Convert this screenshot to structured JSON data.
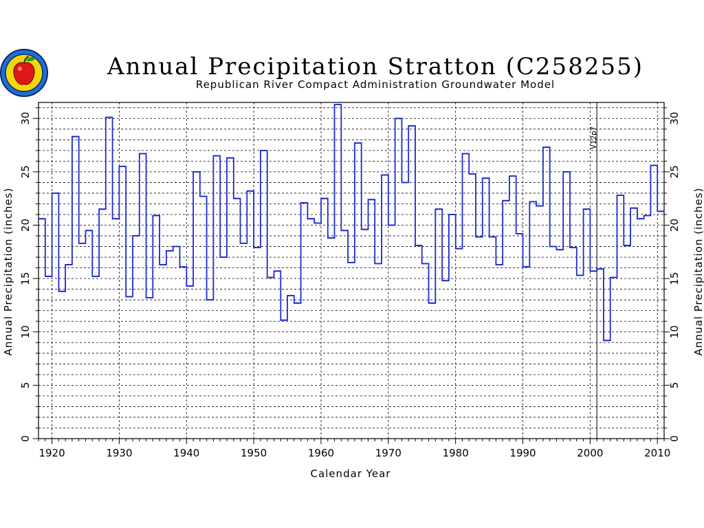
{
  "chart_data": {
    "type": "line",
    "style": "step",
    "title": "Annual Precipitation Stratton (C258255)",
    "subtitle": "Republican River Compact Administration Groundwater Model",
    "xlabel": "Calendar Year",
    "ylabel": "Annual Precipitation (inches)",
    "ylabel_right": "Annual Precipitation (inches)",
    "xlim": [
      1918,
      2011
    ],
    "ylim": [
      0,
      31.5
    ],
    "xticks": [
      1920,
      1930,
      1940,
      1950,
      1960,
      1970,
      1980,
      1990,
      2000,
      2010
    ],
    "yticks": [
      0,
      5,
      10,
      15,
      20,
      25,
      30
    ],
    "grid": true,
    "annotation": {
      "label": "V12p7",
      "x": 2001
    },
    "series_color": "#1a2bd0",
    "series": [
      {
        "x": [
          1918,
          1919,
          1920,
          1921,
          1922,
          1923,
          1924,
          1925,
          1926,
          1927,
          1928,
          1929,
          1930,
          1931,
          1932,
          1933,
          1934,
          1935,
          1936,
          1937,
          1938,
          1939,
          1940,
          1941,
          1942,
          1943,
          1944,
          1945,
          1946,
          1947,
          1948,
          1949,
          1950,
          1951,
          1952,
          1953,
          1954,
          1955,
          1956,
          1957,
          1958,
          1959,
          1960,
          1961,
          1962,
          1963,
          1964,
          1965,
          1966,
          1967,
          1968,
          1969,
          1970,
          1971,
          1972,
          1973,
          1974,
          1975,
          1976,
          1977,
          1978,
          1979,
          1980,
          1981,
          1982,
          1983,
          1984,
          1985,
          1986,
          1987,
          1988,
          1989,
          1990,
          1991,
          1992,
          1993,
          1994,
          1995,
          1996,
          1997,
          1998,
          1999,
          2000,
          2001,
          2002,
          2003,
          2004,
          2005,
          2006,
          2007,
          2008,
          2009,
          2010
        ],
        "values": [
          20.6,
          15.2,
          23.0,
          13.8,
          16.3,
          28.3,
          18.3,
          19.5,
          15.2,
          21.5,
          30.1,
          20.6,
          25.5,
          13.3,
          19.0,
          26.7,
          13.2,
          20.9,
          16.3,
          17.6,
          18.0,
          16.1,
          14.3,
          25.0,
          22.7,
          13.0,
          26.5,
          17.0,
          26.3,
          22.5,
          18.3,
          23.2,
          17.9,
          27.0,
          15.1,
          15.7,
          11.1,
          13.4,
          12.7,
          22.1,
          20.6,
          20.2,
          22.5,
          18.8,
          31.3,
          19.5,
          16.5,
          27.7,
          19.6,
          22.4,
          16.4,
          24.7,
          20.0,
          30.0,
          24.0,
          29.3,
          18.1,
          16.4,
          12.7,
          21.5,
          14.8,
          21.0,
          17.8,
          26.7,
          24.8,
          18.9,
          24.4,
          18.9,
          16.3,
          22.3,
          24.6,
          19.2,
          16.1,
          22.2,
          21.8,
          27.3,
          18.0,
          17.7,
          25.0,
          17.9,
          15.3,
          21.5,
          15.7,
          15.9,
          9.2,
          15.1,
          22.8,
          18.1,
          21.6,
          20.6,
          20.9,
          25.6,
          21.3
        ]
      }
    ]
  }
}
